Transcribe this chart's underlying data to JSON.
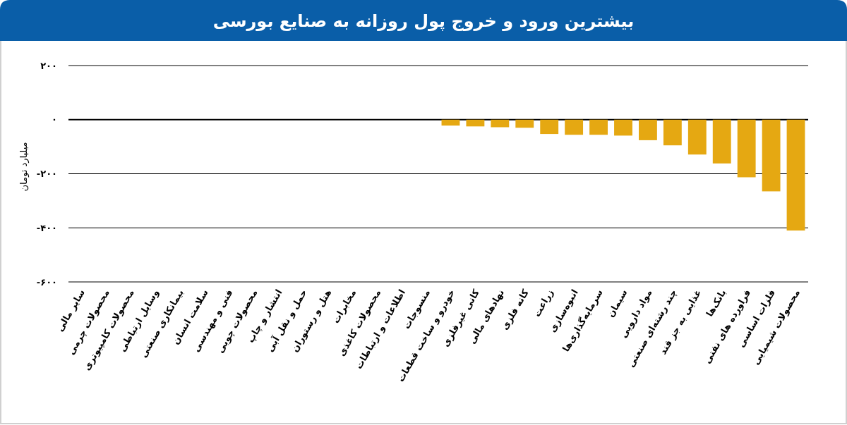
{
  "chart_data": {
    "type": "bar",
    "title": "بیشترین ورود و خروج پول روزانه به صنایع بورسی",
    "ylabel": "میلیارد تومان",
    "categories": [
      "سایر مالی",
      "محصولات چرمی",
      "محصولات کامپیوتری",
      "وسایل ارتباطی",
      "بیمانکاری صنعتی",
      "سلامت انسان",
      "فنی و مهندسی",
      "محصولات چوبی",
      "انتشار و چاپ",
      "حمل و نقل آبی",
      "هتل و رستوران",
      "مخابرات",
      "محصولات کاغذی",
      "اطلاعات و ارتباطات",
      "منسوجات",
      "خودرو و ساخت قطعات",
      "کانی غیرفلزی",
      "نهادهای مالی",
      "کانه فلزی",
      "زراعت",
      "انبوه‌سازی",
      "سرمایه‌گذاری‌ها",
      "سیمان",
      "مواد دارویی",
      "چند رشته‌ای صنعتی",
      "غذایی به جز قند",
      "بانک‌ها",
      "فراورده های نفتی",
      "فلزات اساسی",
      "محصولات شیمیایی"
    ],
    "values": [
      null,
      null,
      null,
      null,
      null,
      null,
      null,
      null,
      null,
      null,
      null,
      null,
      null,
      null,
      null,
      -22,
      -25,
      -28,
      -30,
      -53,
      -56,
      -56,
      -59,
      -76,
      -95,
      -129,
      -162,
      -213,
      -265,
      -410
    ],
    "color": "#e5a812",
    "ylim": [
      -600,
      200
    ],
    "yticks": [
      {
        "value": 200,
        "label": "۲۰۰"
      },
      {
        "value": 0,
        "label": "۰"
      },
      {
        "value": -200,
        "label": "-۲۰۰"
      },
      {
        "value": -400,
        "label": "-۴۰۰"
      },
      {
        "value": -600,
        "label": "-۶۰۰"
      }
    ],
    "grid": "y"
  }
}
